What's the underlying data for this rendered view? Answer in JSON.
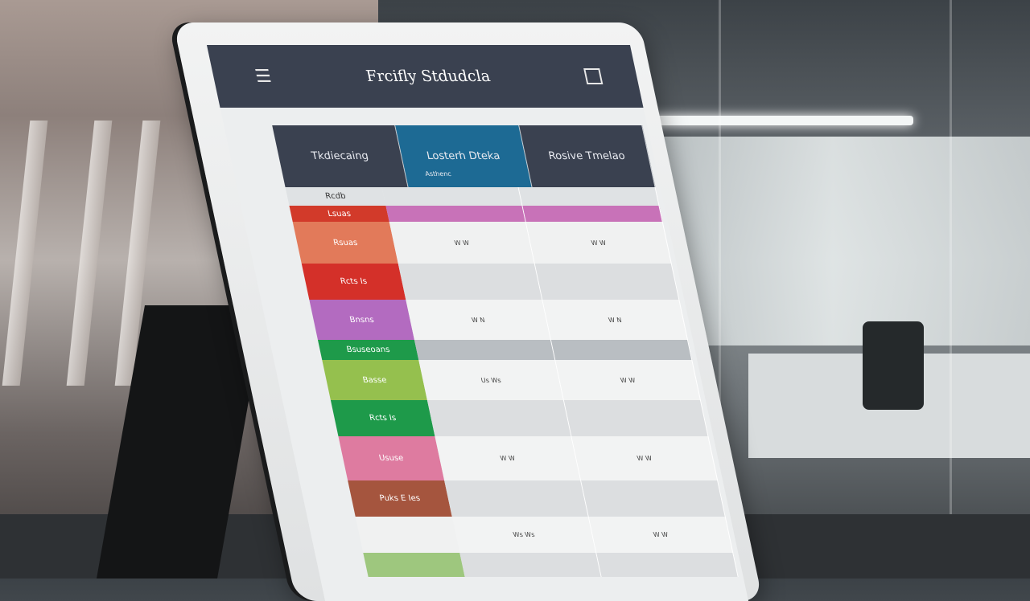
{
  "app": {
    "title": "Frcifly Stdudcla",
    "menu_icon": "menu-icon",
    "window_icon": "window-icon"
  },
  "table": {
    "headers": [
      {
        "label": "Tkdiecaing",
        "color": "#3a4150"
      },
      {
        "label": "Losterh Dteka",
        "sub": "Asthenc",
        "color": "#1d6a94"
      },
      {
        "label": "Rosive Tmelao",
        "color": "#3a4150"
      }
    ],
    "rows": [
      {
        "label": "Rcdb",
        "color": "#dfe2e4",
        "text_color": "#333",
        "cells": [
          "",
          ""
        ],
        "cell_colors": [
          "#dfe2e4",
          "#dfe2e4"
        ]
      },
      {
        "label": "Lsuas",
        "color": "#d23a2a",
        "cells": [
          "",
          ""
        ],
        "cell_colors": [
          "#c872b8",
          "#c872b8"
        ]
      },
      {
        "label": "Rsuas",
        "color": "#e27a5a",
        "cells": [
          "W  W",
          "W  W"
        ],
        "cell_colors": [
          "#f0f1f1",
          "#f0f1f1"
        ]
      },
      {
        "label": "Rcts Is",
        "color": "#d43029",
        "cells": [
          "",
          ""
        ],
        "cell_colors": [
          "#dcdee0",
          "#dcdee0"
        ]
      },
      {
        "label": "Bnsns",
        "color": "#b36bc0",
        "cells": [
          "W  N",
          "W  N"
        ],
        "cell_colors": [
          "#f2f3f3",
          "#f2f3f3"
        ]
      },
      {
        "label": "Bsuseoans",
        "color": "#1e9a4a",
        "cells": [
          "",
          ""
        ],
        "cell_colors": [
          "#b9bec2",
          "#b9bec2"
        ]
      },
      {
        "label": "Basse",
        "color": "#95c04e",
        "cells": [
          "Us  Ws",
          "W  W"
        ],
        "cell_colors": [
          "#f2f3f3",
          "#f2f3f3"
        ]
      },
      {
        "label": "Rcts Is",
        "color": "#1e9a4a",
        "cells": [
          "",
          ""
        ],
        "cell_colors": [
          "#dcdee0",
          "#dcdee0"
        ]
      },
      {
        "label": "Ususe",
        "color": "#de7ba0",
        "cells": [
          "W  W",
          "W  W"
        ],
        "cell_colors": [
          "#f2f3f3",
          "#f2f3f3"
        ]
      },
      {
        "label": "Puks E Ies",
        "color": "#a5553e",
        "cells": [
          "",
          ""
        ],
        "cell_colors": [
          "#dcdee0",
          "#dcdee0"
        ]
      },
      {
        "label": "",
        "color": "#f0f1f1",
        "cells": [
          "Ws  Ws",
          "W  W"
        ],
        "cell_colors": [
          "#f2f3f3",
          "#f2f3f3"
        ]
      },
      {
        "label": "",
        "color": "#9ec77e",
        "cells": [
          "",
          ""
        ],
        "cell_colors": [
          "#dcdee0",
          "#dcdee0"
        ]
      }
    ]
  }
}
